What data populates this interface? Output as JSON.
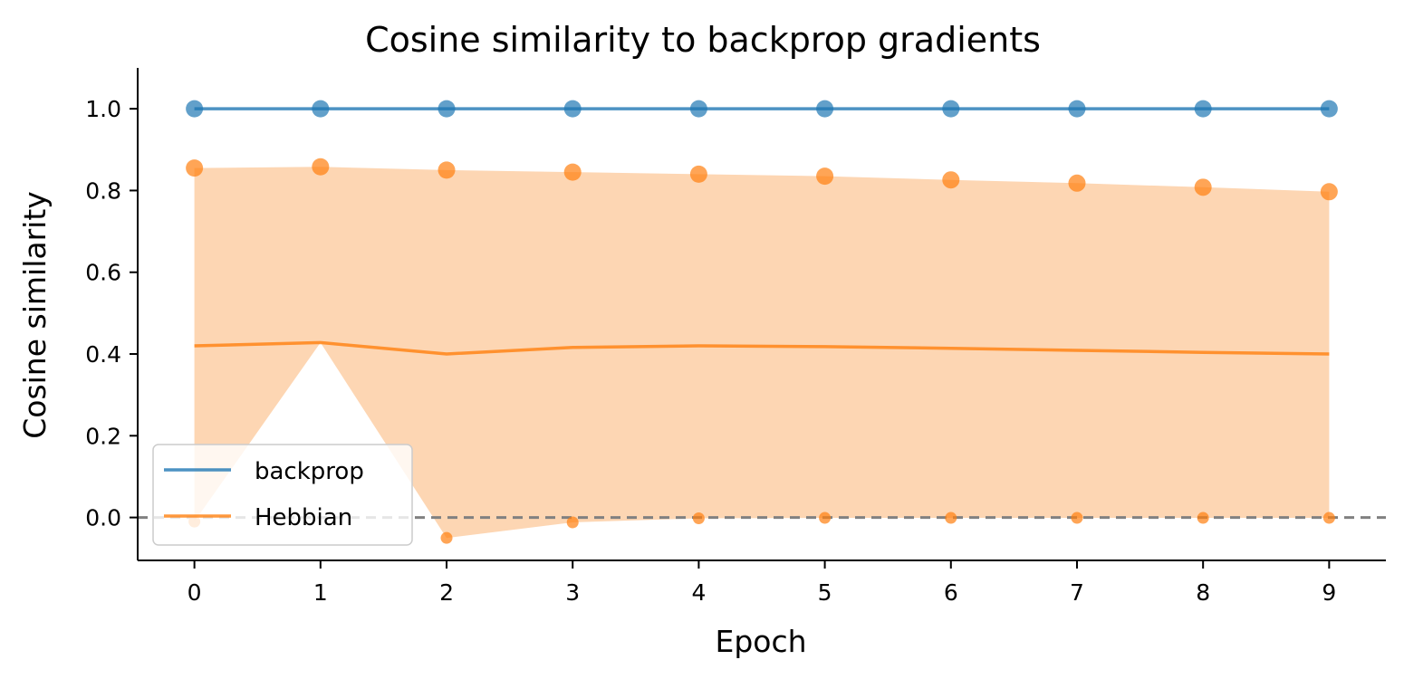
{
  "chart_data": {
    "type": "line",
    "title": "Cosine similarity to backprop gradients",
    "xlabel": "Epoch",
    "ylabel": "Cosine similarity",
    "x": [
      0,
      1,
      2,
      3,
      4,
      5,
      6,
      7,
      8,
      9
    ],
    "xticks": [
      "0",
      "1",
      "2",
      "3",
      "4",
      "5",
      "6",
      "7",
      "8",
      "9"
    ],
    "yticks": [
      "0.0",
      "0.2",
      "0.4",
      "0.6",
      "0.8",
      "1.0"
    ],
    "xlim": [
      -0.45,
      9.45
    ],
    "ylim": [
      -0.105,
      1.1
    ],
    "reference_line": {
      "y": 0.0,
      "style": "dashed",
      "color": "#808080"
    },
    "legend_position": "lower-left",
    "series": [
      {
        "name": "backprop",
        "color": "#1f77b4",
        "values": [
          1.0,
          1.0,
          1.0,
          1.0,
          1.0,
          1.0,
          1.0,
          1.0,
          1.0,
          1.0
        ],
        "max": [
          1.0,
          1.0,
          1.0,
          1.0,
          1.0,
          1.0,
          1.0,
          1.0,
          1.0,
          1.0
        ],
        "min": [
          1.0,
          1.0,
          1.0,
          1.0,
          1.0,
          1.0,
          1.0,
          1.0,
          1.0,
          1.0
        ]
      },
      {
        "name": "Hebbian",
        "color": "#ff7f0e",
        "band_color": "#fdd6b3",
        "values": [
          0.42,
          0.428,
          0.4,
          0.416,
          0.42,
          0.418,
          0.414,
          0.409,
          0.404,
          0.4
        ],
        "max": [
          0.855,
          0.858,
          0.85,
          0.845,
          0.84,
          0.835,
          0.826,
          0.818,
          0.808,
          0.797
        ],
        "min": [
          -0.01,
          null,
          -0.05,
          -0.012,
          -0.002,
          -0.001,
          -0.001,
          -0.001,
          -0.001,
          -0.001
        ]
      }
    ]
  }
}
